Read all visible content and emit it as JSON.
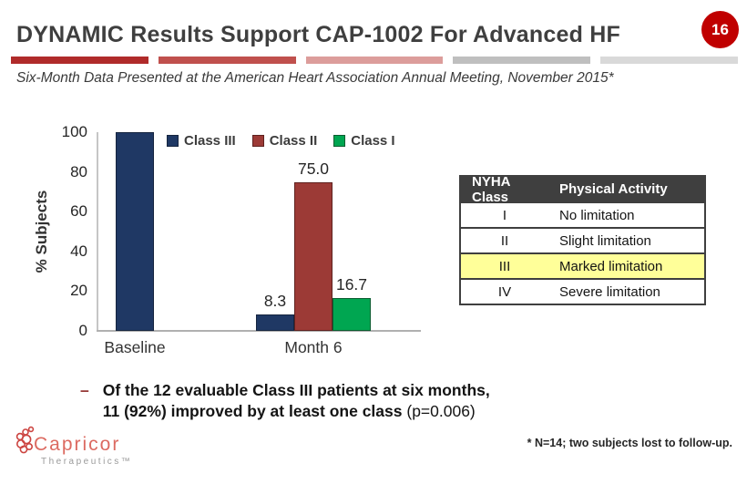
{
  "header": {
    "title": "DYNAMIC Results Support CAP-1002 For Advanced HF",
    "slide_number": "16",
    "badge_color": "#c00000",
    "accent_bar_colors": [
      "#b02b2a",
      "#c0504d",
      "#dc9d9b",
      "#bfbfbf",
      "#d9d9d9"
    ],
    "subtitle": "Six-Month Data Presented at the American Heart Association Annual Meeting, November 2015*"
  },
  "chart_data": {
    "type": "bar",
    "title": "",
    "xlabel": "",
    "ylabel": "% Subjects",
    "ylim": [
      0,
      100
    ],
    "yticks": [
      0,
      20,
      40,
      60,
      80,
      100
    ],
    "grid": false,
    "legend_position": "top",
    "categories": [
      "Baseline",
      "Month 6"
    ],
    "series": [
      {
        "name": "Class III",
        "color": "#1f3864",
        "border": "#16253f",
        "values": [
          100,
          8.3
        ],
        "labels": [
          "",
          "8.3"
        ]
      },
      {
        "name": "Class II",
        "color": "#9c3a36",
        "border": "#5e211f",
        "values": [
          0,
          75
        ],
        "labels": [
          "",
          "75.0"
        ]
      },
      {
        "name": "Class I",
        "color": "#00a651",
        "border": "#0a5c30",
        "values": [
          0,
          16.7
        ],
        "labels": [
          "",
          "16.7"
        ]
      }
    ]
  },
  "nyha_table": {
    "headers": [
      "NYHA Class",
      "Physical Activity"
    ],
    "highlight_color": "#ffff99",
    "rows": [
      {
        "class": "I",
        "activity": "No limitation",
        "highlighted": false
      },
      {
        "class": "II",
        "activity": "Slight limitation",
        "highlighted": false
      },
      {
        "class": "III",
        "activity": "Marked limitation",
        "highlighted": true
      },
      {
        "class": "IV",
        "activity": "Severe limitation",
        "highlighted": false
      }
    ]
  },
  "bullet": {
    "dash": "–",
    "line1": "Of the 12 evaluable Class III patients at six months,",
    "line2_bold": "11 (92%) improved by at least one class",
    "line2_regular": " (p=0.006)"
  },
  "footer": {
    "logo_name": "Capricor",
    "logo_sub": "Therapeutics™",
    "footnote": "* N=14; two subjects lost to follow-up."
  }
}
